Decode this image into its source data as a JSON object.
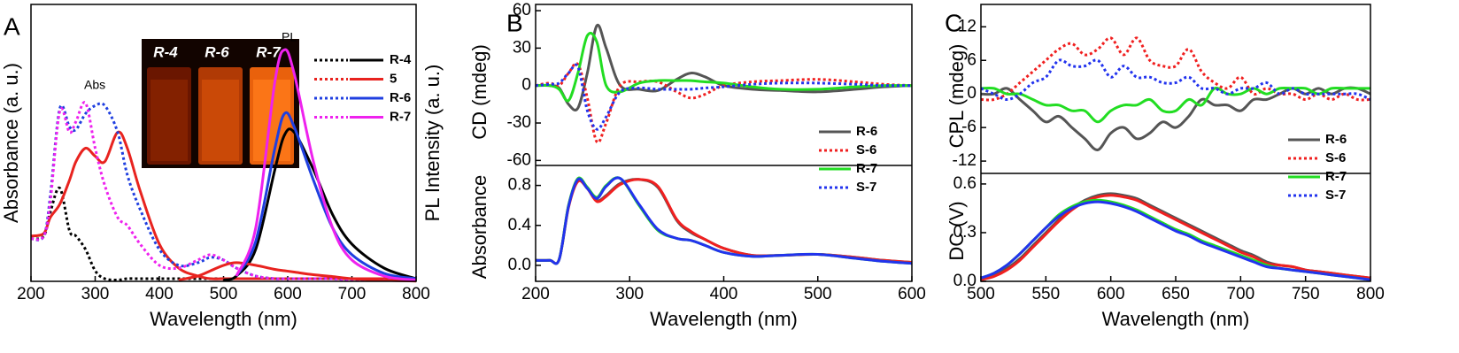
{
  "chart_data": [
    {
      "type": "line",
      "panel_label": "A",
      "xlabel": "Wavelength (nm)",
      "ylabel": "Absorbance (a. u.)",
      "y2label": "PL Intensity (a. u.)",
      "annotations": [
        "Abs",
        "PL"
      ],
      "inset_labels": [
        "R-4",
        "R-6",
        "R-7"
      ],
      "legend": "upper right",
      "x": [
        200,
        220,
        230,
        245,
        260,
        270,
        285,
        300,
        315,
        335,
        350,
        370,
        400,
        430,
        460,
        480,
        500,
        520,
        550,
        580,
        595,
        610,
        640,
        670,
        700,
        750,
        800
      ],
      "xlim": [
        200,
        800
      ],
      "xticks": [
        200,
        300,
        400,
        500,
        600,
        700,
        800
      ],
      "ylim": [
        0,
        1.04
      ],
      "series": [
        {
          "name": "R-4",
          "color": "#000000",
          "dash": "dotted",
          "values": [
            0.16,
            0.17,
            0.26,
            0.35,
            0.19,
            0.17,
            0.12,
            0.04,
            0.01,
            0.005,
            0.01,
            0.01,
            0.01,
            0.01,
            0.01,
            0.01,
            0.01,
            0.01,
            0.01,
            0.01,
            0.01,
            0.01,
            0.01,
            0.01,
            0.01,
            0.01,
            0.01
          ],
          "pl_values": [
            null,
            null,
            null,
            null,
            null,
            null,
            null,
            null,
            null,
            null,
            null,
            null,
            null,
            null,
            null,
            null,
            0.005,
            0.02,
            0.12,
            0.42,
            0.55,
            0.56,
            0.42,
            0.25,
            0.14,
            0.05,
            0.01
          ]
        },
        {
          "name": "5",
          "color": "#e8231f",
          "dash": "solid",
          "values": [
            0.17,
            0.18,
            0.24,
            0.29,
            0.38,
            0.45,
            0.5,
            0.47,
            0.45,
            0.56,
            0.5,
            0.34,
            0.14,
            0.05,
            0.02,
            0.01,
            0.01,
            0.01,
            0.01,
            0.01,
            0.01,
            0.01,
            0.01,
            0.01,
            0.01,
            0.01,
            0.01
          ],
          "pl_values": [
            null,
            null,
            null,
            null,
            null,
            null,
            null,
            null,
            null,
            null,
            null,
            null,
            null,
            0.005,
            0.02,
            0.04,
            0.06,
            0.07,
            0.06,
            0.045,
            0.04,
            0.035,
            0.025,
            0.018,
            0.01,
            0.004,
            0.001
          ]
        },
        {
          "name": "R-6",
          "color": "#1f3fe0",
          "dash": "dotted",
          "values": [
            0.16,
            0.17,
            0.32,
            0.65,
            0.58,
            0.57,
            0.63,
            0.66,
            0.66,
            0.56,
            0.4,
            0.27,
            0.12,
            0.06,
            0.07,
            0.09,
            0.08,
            0.05,
            0.02,
            0.01,
            0.01,
            0.01,
            0.01,
            0.01,
            0.005,
            0.005,
            0.005
          ],
          "pl_values": [
            null,
            null,
            null,
            null,
            null,
            null,
            null,
            null,
            null,
            null,
            null,
            null,
            null,
            null,
            null,
            null,
            null,
            0.02,
            0.15,
            0.5,
            0.63,
            0.58,
            0.38,
            0.2,
            0.1,
            0.03,
            0.01
          ]
        },
        {
          "name": "R-7",
          "color": "#ee22ee",
          "dash": "dotted",
          "values": [
            0.16,
            0.17,
            0.3,
            0.64,
            0.56,
            0.6,
            0.67,
            0.5,
            0.36,
            0.24,
            0.21,
            0.14,
            0.06,
            0.05,
            0.08,
            0.1,
            0.08,
            0.05,
            0.02,
            0.01,
            0.01,
            0.01,
            0.01,
            0.01,
            0.005,
            0.005,
            0.005
          ],
          "pl_values": [
            null,
            null,
            null,
            null,
            null,
            null,
            null,
            null,
            null,
            null,
            null,
            null,
            null,
            null,
            null,
            null,
            null,
            0.02,
            0.2,
            0.75,
            0.87,
            0.78,
            0.45,
            0.2,
            0.08,
            0.02,
            0.005
          ]
        }
      ]
    },
    {
      "type": "line",
      "panel_label": "B",
      "xlabel": "Wavelength (nm)",
      "ylabel": "CD (mdeg)",
      "lower_ylabel": "Absorbance",
      "legend": "center right",
      "x": [
        200,
        215,
        225,
        235,
        245,
        255,
        265,
        275,
        290,
        310,
        330,
        350,
        365,
        380,
        400,
        430,
        460,
        500,
        540,
        570,
        600
      ],
      "xlim": [
        200,
        600
      ],
      "xticks": [
        200,
        300,
        400,
        500,
        600
      ],
      "ylim": [
        -64,
        65
      ],
      "yticks": [
        -60,
        -30,
        0,
        30,
        60
      ],
      "lower_ylim": [
        -0.16,
        1.0
      ],
      "lower_yticks": [
        {
          "value": 0,
          "label": "0.0"
        },
        {
          "value": 0.4,
          "label": "0.4"
        },
        {
          "value": 0.8,
          "label": "0.8"
        }
      ],
      "series": [
        {
          "name": "R-6",
          "color": "#555555",
          "dash": "solid",
          "values": [
            0,
            0,
            -2,
            -15,
            -18,
            10,
            48,
            30,
            0,
            -3,
            -4,
            5,
            10,
            7,
            0,
            -3,
            -4,
            -5,
            -3,
            -1,
            0
          ],
          "lower_values": [
            0.05,
            0.05,
            0.06,
            0.6,
            0.85,
            0.78,
            0.65,
            0.7,
            0.82,
            0.86,
            0.78,
            0.45,
            0.33,
            0.26,
            0.17,
            0.1,
            0.1,
            0.11,
            0.08,
            0.05,
            0.03
          ]
        },
        {
          "name": "S-6",
          "color": "#f02020",
          "dash": "dotted",
          "values": [
            0,
            2,
            0,
            10,
            17,
            -10,
            -45,
            -30,
            0,
            3,
            3,
            -5,
            -10,
            -7,
            0,
            3,
            4,
            5,
            3,
            1,
            0
          ],
          "lower_values": [
            0.05,
            0.05,
            0.06,
            0.58,
            0.84,
            0.77,
            0.64,
            0.69,
            0.81,
            0.86,
            0.79,
            0.46,
            0.34,
            0.26,
            0.17,
            0.1,
            0.1,
            0.11,
            0.08,
            0.05,
            0.03
          ]
        },
        {
          "name": "R-7",
          "color": "#22dd22",
          "dash": "solid",
          "values": [
            0,
            0,
            -3,
            -12,
            10,
            40,
            35,
            0,
            -5,
            2,
            4,
            4,
            4,
            3,
            2,
            -1,
            -3,
            -3,
            -1,
            0,
            0
          ],
          "lower_values": [
            0.05,
            0.05,
            0.06,
            0.6,
            0.87,
            0.78,
            0.68,
            0.8,
            0.87,
            0.6,
            0.35,
            0.27,
            0.25,
            0.2,
            0.13,
            0.09,
            0.1,
            0.11,
            0.07,
            0.04,
            0.02
          ]
        },
        {
          "name": "S-7",
          "color": "#2233ee",
          "dash": "dotted",
          "values": [
            0,
            1,
            2,
            10,
            15,
            -20,
            -35,
            -25,
            -5,
            -2,
            -3,
            -3,
            -3,
            -2,
            -1,
            1,
            2,
            2,
            1,
            0,
            0
          ],
          "lower_values": [
            0.05,
            0.05,
            0.06,
            0.59,
            0.86,
            0.77,
            0.67,
            0.79,
            0.87,
            0.61,
            0.36,
            0.27,
            0.25,
            0.2,
            0.13,
            0.09,
            0.1,
            0.11,
            0.07,
            0.04,
            0.02
          ]
        }
      ]
    },
    {
      "type": "line",
      "panel_label": "C",
      "xlabel": "Wavelength (nm)",
      "ylabel": "CPL (mdeg)",
      "lower_ylabel": "DC (V)",
      "legend": "center right",
      "x": [
        500,
        510,
        520,
        530,
        540,
        550,
        560,
        570,
        580,
        590,
        600,
        610,
        620,
        630,
        640,
        650,
        660,
        670,
        680,
        690,
        700,
        710,
        720,
        730,
        740,
        750,
        760,
        770,
        780,
        790,
        800
      ],
      "xlim": [
        500,
        800
      ],
      "xticks": [
        500,
        550,
        600,
        650,
        700,
        750,
        800
      ],
      "ylim": [
        -14.2,
        16
      ],
      "yticks": [
        -12,
        -6,
        0,
        6,
        12
      ],
      "lower_ylim": [
        0,
        0.665
      ],
      "lower_yticks": [
        {
          "value": 0,
          "label": "0.0"
        },
        {
          "value": 0.3,
          "label": "0.3"
        },
        {
          "value": 0.6,
          "label": "0.6"
        }
      ],
      "series": [
        {
          "name": "R-6",
          "color": "#555555",
          "dash": "solid",
          "values": [
            0,
            0,
            1,
            -1,
            -3,
            -5,
            -4,
            -6,
            -8,
            -10,
            -7,
            -6,
            -8,
            -7,
            -5,
            -6,
            -4,
            -1,
            -2,
            -2,
            -3,
            -1,
            -1,
            0,
            1,
            0,
            1,
            0,
            1,
            1,
            0
          ],
          "lower_values": [
            0.01,
            0.04,
            0.08,
            0.14,
            0.22,
            0.3,
            0.38,
            0.45,
            0.5,
            0.53,
            0.54,
            0.53,
            0.51,
            0.47,
            0.43,
            0.39,
            0.35,
            0.31,
            0.27,
            0.23,
            0.19,
            0.16,
            0.12,
            0.1,
            0.09,
            0.07,
            0.06,
            0.05,
            0.04,
            0.03,
            0.02
          ]
        },
        {
          "name": "S-6",
          "color": "#f02020",
          "dash": "dotted",
          "values": [
            -1,
            -1,
            0,
            2,
            4,
            6,
            8,
            9,
            7,
            8,
            10,
            7,
            10,
            6,
            5,
            5,
            8,
            4,
            2,
            1,
            3,
            0,
            1,
            0,
            0,
            -1,
            0,
            -1,
            0,
            -1,
            -1
          ],
          "lower_values": [
            0.01,
            0.03,
            0.07,
            0.13,
            0.21,
            0.29,
            0.37,
            0.44,
            0.49,
            0.52,
            0.53,
            0.52,
            0.5,
            0.46,
            0.42,
            0.38,
            0.34,
            0.3,
            0.26,
            0.22,
            0.18,
            0.15,
            0.11,
            0.1,
            0.09,
            0.07,
            0.06,
            0.05,
            0.04,
            0.03,
            0.02
          ]
        },
        {
          "name": "R-7",
          "color": "#22dd22",
          "dash": "solid",
          "values": [
            1,
            1,
            0,
            0,
            -1,
            -2,
            -2,
            -3,
            -3,
            -5,
            -3,
            -2,
            -2,
            -1,
            -3,
            -3,
            -1,
            -2,
            1,
            0,
            0,
            1,
            0,
            1,
            1,
            1,
            0,
            1,
            1,
            1,
            1
          ],
          "lower_values": [
            0.02,
            0.05,
            0.1,
            0.17,
            0.25,
            0.33,
            0.41,
            0.46,
            0.49,
            0.5,
            0.49,
            0.47,
            0.44,
            0.4,
            0.36,
            0.32,
            0.29,
            0.25,
            0.22,
            0.19,
            0.16,
            0.13,
            0.1,
            0.08,
            0.07,
            0.06,
            0.05,
            0.04,
            0.03,
            0.02,
            0.01
          ]
        },
        {
          "name": "S-7",
          "color": "#2233ee",
          "dash": "dotted",
          "values": [
            1,
            0,
            -1,
            0,
            2,
            3,
            6,
            5,
            5,
            6,
            3,
            5,
            3,
            3,
            2,
            2,
            3,
            1,
            1,
            0,
            1,
            1,
            2,
            0,
            1,
            0,
            0,
            0,
            0,
            0,
            -1
          ],
          "lower_values": [
            0.02,
            0.05,
            0.1,
            0.17,
            0.25,
            0.33,
            0.4,
            0.45,
            0.48,
            0.49,
            0.48,
            0.46,
            0.43,
            0.39,
            0.35,
            0.31,
            0.28,
            0.24,
            0.21,
            0.18,
            0.15,
            0.12,
            0.09,
            0.08,
            0.07,
            0.06,
            0.05,
            0.04,
            0.03,
            0.02,
            0.01
          ]
        }
      ]
    }
  ]
}
